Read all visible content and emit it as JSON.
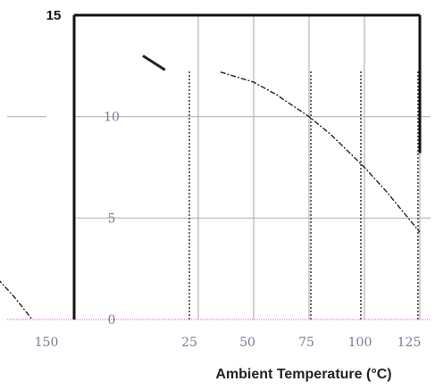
{
  "chart_data": {
    "type": "line",
    "title": "",
    "xlabel": "Ambient Temperature (°C)",
    "ylabel": "",
    "x_ticks": [
      "150",
      "25",
      "50",
      "75",
      "100",
      "125"
    ],
    "y_ticks": [
      "15",
      "10",
      "5",
      "0"
    ],
    "xlim": [
      0,
      125
    ],
    "ylim": [
      0,
      15
    ],
    "grid": true,
    "legend": "none",
    "series": [
      {
        "x": [
          0,
          10
        ],
        "y": [
          13,
          12.3
        ]
      },
      {
        "x": [
          35,
          50,
          60,
          75,
          85,
          100,
          110,
          125
        ],
        "y": [
          12.2,
          11.7,
          11.1,
          10.0,
          9.1,
          7.5,
          6.3,
          4.3
        ]
      },
      {
        "x": [
          -75,
          -68,
          -58,
          -50
        ],
        "y": [
          3.2,
          2.3,
          1.1,
          0.0
        ]
      }
    ],
    "colors": {
      "frame": "#111111",
      "grid": "#b4b4b4",
      "curve": "#222222",
      "baseline": "#e060e0"
    }
  }
}
